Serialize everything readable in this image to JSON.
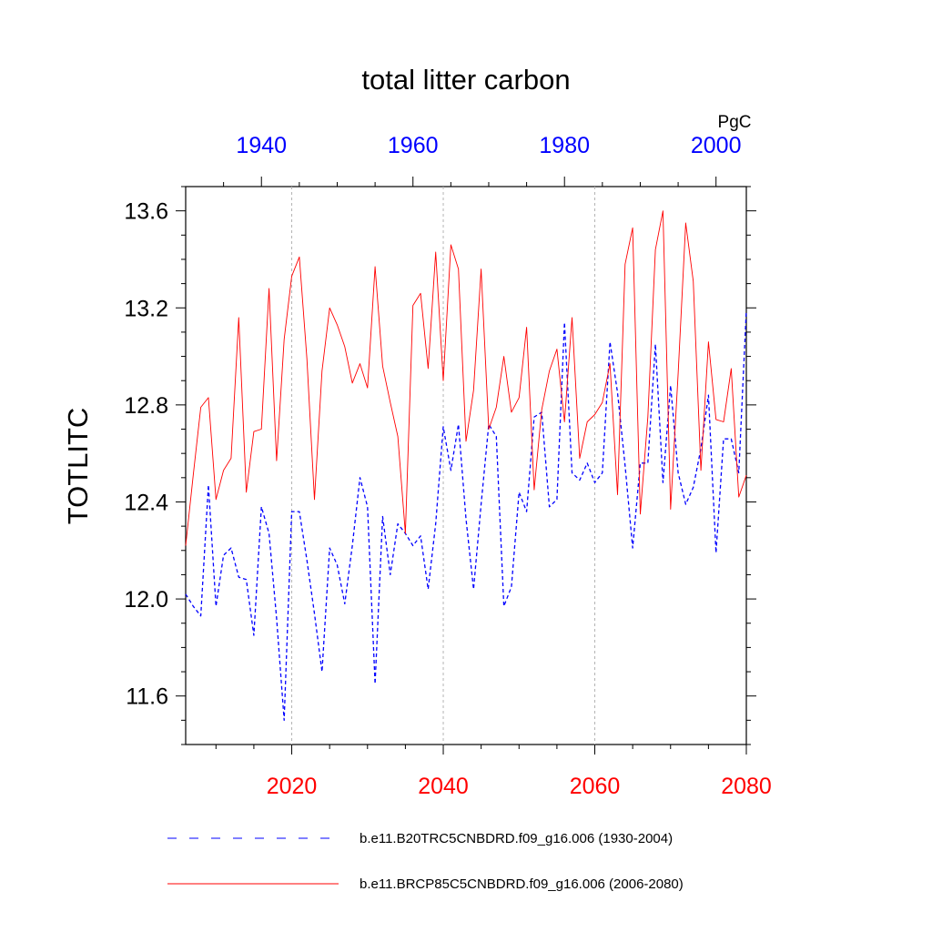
{
  "chart_data": {
    "type": "line",
    "title": "total litter carbon",
    "ylabel": "TOTLITC",
    "units": "PgC",
    "ylim": [
      11.4,
      13.7
    ],
    "yticks": [
      11.6,
      12.0,
      12.4,
      12.8,
      13.2,
      13.6
    ],
    "ytick_labels": [
      "11.6",
      "12.0",
      "12.4",
      "12.8",
      "13.2",
      "13.6"
    ],
    "xlim_bottom": [
      2006,
      2080
    ],
    "xticks_bottom": [
      2020,
      2040,
      2060,
      2080
    ],
    "xtick_labels_bottom": [
      "2020",
      "2040",
      "2060",
      "2080"
    ],
    "xlim_top": [
      1930,
      2004
    ],
    "xticks_top": [
      1940,
      1960,
      1980,
      2000
    ],
    "xtick_labels_top": [
      "1940",
      "1960",
      "1980",
      "2000"
    ],
    "bottom_axis_color": "#ff0000",
    "top_axis_color": "#0000ff",
    "grid_x": [
      2020,
      2040,
      2060
    ],
    "series": [
      {
        "name": "b.e11.B20TRC5CNBDRD.f09_g16.006 (1930-2004)",
        "axis": "top",
        "color": "#0000ff",
        "dash": "dashed",
        "x_start": 1930,
        "values": [
          12.02,
          11.97,
          11.93,
          12.47,
          11.97,
          12.18,
          12.21,
          12.09,
          12.08,
          11.85,
          12.38,
          12.27,
          11.92,
          11.5,
          12.36,
          12.36,
          12.16,
          11.94,
          11.7,
          12.21,
          12.14,
          11.98,
          12.22,
          12.5,
          12.38,
          11.65,
          12.34,
          12.1,
          12.31,
          12.27,
          12.22,
          12.26,
          12.04,
          12.31,
          12.71,
          12.53,
          12.72,
          12.33,
          12.04,
          12.39,
          12.72,
          12.67,
          11.97,
          12.05,
          12.44,
          12.36,
          12.75,
          12.77,
          12.38,
          12.41,
          13.14,
          12.52,
          12.49,
          12.56,
          12.48,
          12.52,
          13.06,
          12.85,
          12.55,
          12.21,
          12.56,
          12.56,
          13.05,
          12.48,
          12.88,
          12.52,
          12.39,
          12.46,
          12.62,
          12.84,
          12.19,
          12.66,
          12.66,
          12.52,
          13.19
        ]
      },
      {
        "name": "b.e11.BRCP85C5CNBDRD.f09_g16.006 (2006-2080)",
        "axis": "bottom",
        "color": "#ff0000",
        "dash": "solid",
        "x_start": 2006,
        "values": [
          12.22,
          12.51,
          12.79,
          12.83,
          12.41,
          12.53,
          12.58,
          13.16,
          12.44,
          12.69,
          12.7,
          13.28,
          12.57,
          13.07,
          13.33,
          13.41,
          12.99,
          12.41,
          12.94,
          13.2,
          13.13,
          13.04,
          12.89,
          12.97,
          12.87,
          13.37,
          12.96,
          12.81,
          12.67,
          12.27,
          13.21,
          13.26,
          12.95,
          13.43,
          12.9,
          13.46,
          13.36,
          12.65,
          12.86,
          13.36,
          12.7,
          12.79,
          13.0,
          12.77,
          12.83,
          13.12,
          12.45,
          12.78,
          12.94,
          13.03,
          12.73,
          13.16,
          12.58,
          12.73,
          12.76,
          12.81,
          12.97,
          12.43,
          13.38,
          13.53,
          12.35,
          12.75,
          13.44,
          13.6,
          12.37,
          12.93,
          13.55,
          13.31,
          12.53,
          13.06,
          12.74,
          12.73,
          12.95,
          12.42,
          12.51
        ]
      }
    ],
    "legend_position": "bottom"
  }
}
